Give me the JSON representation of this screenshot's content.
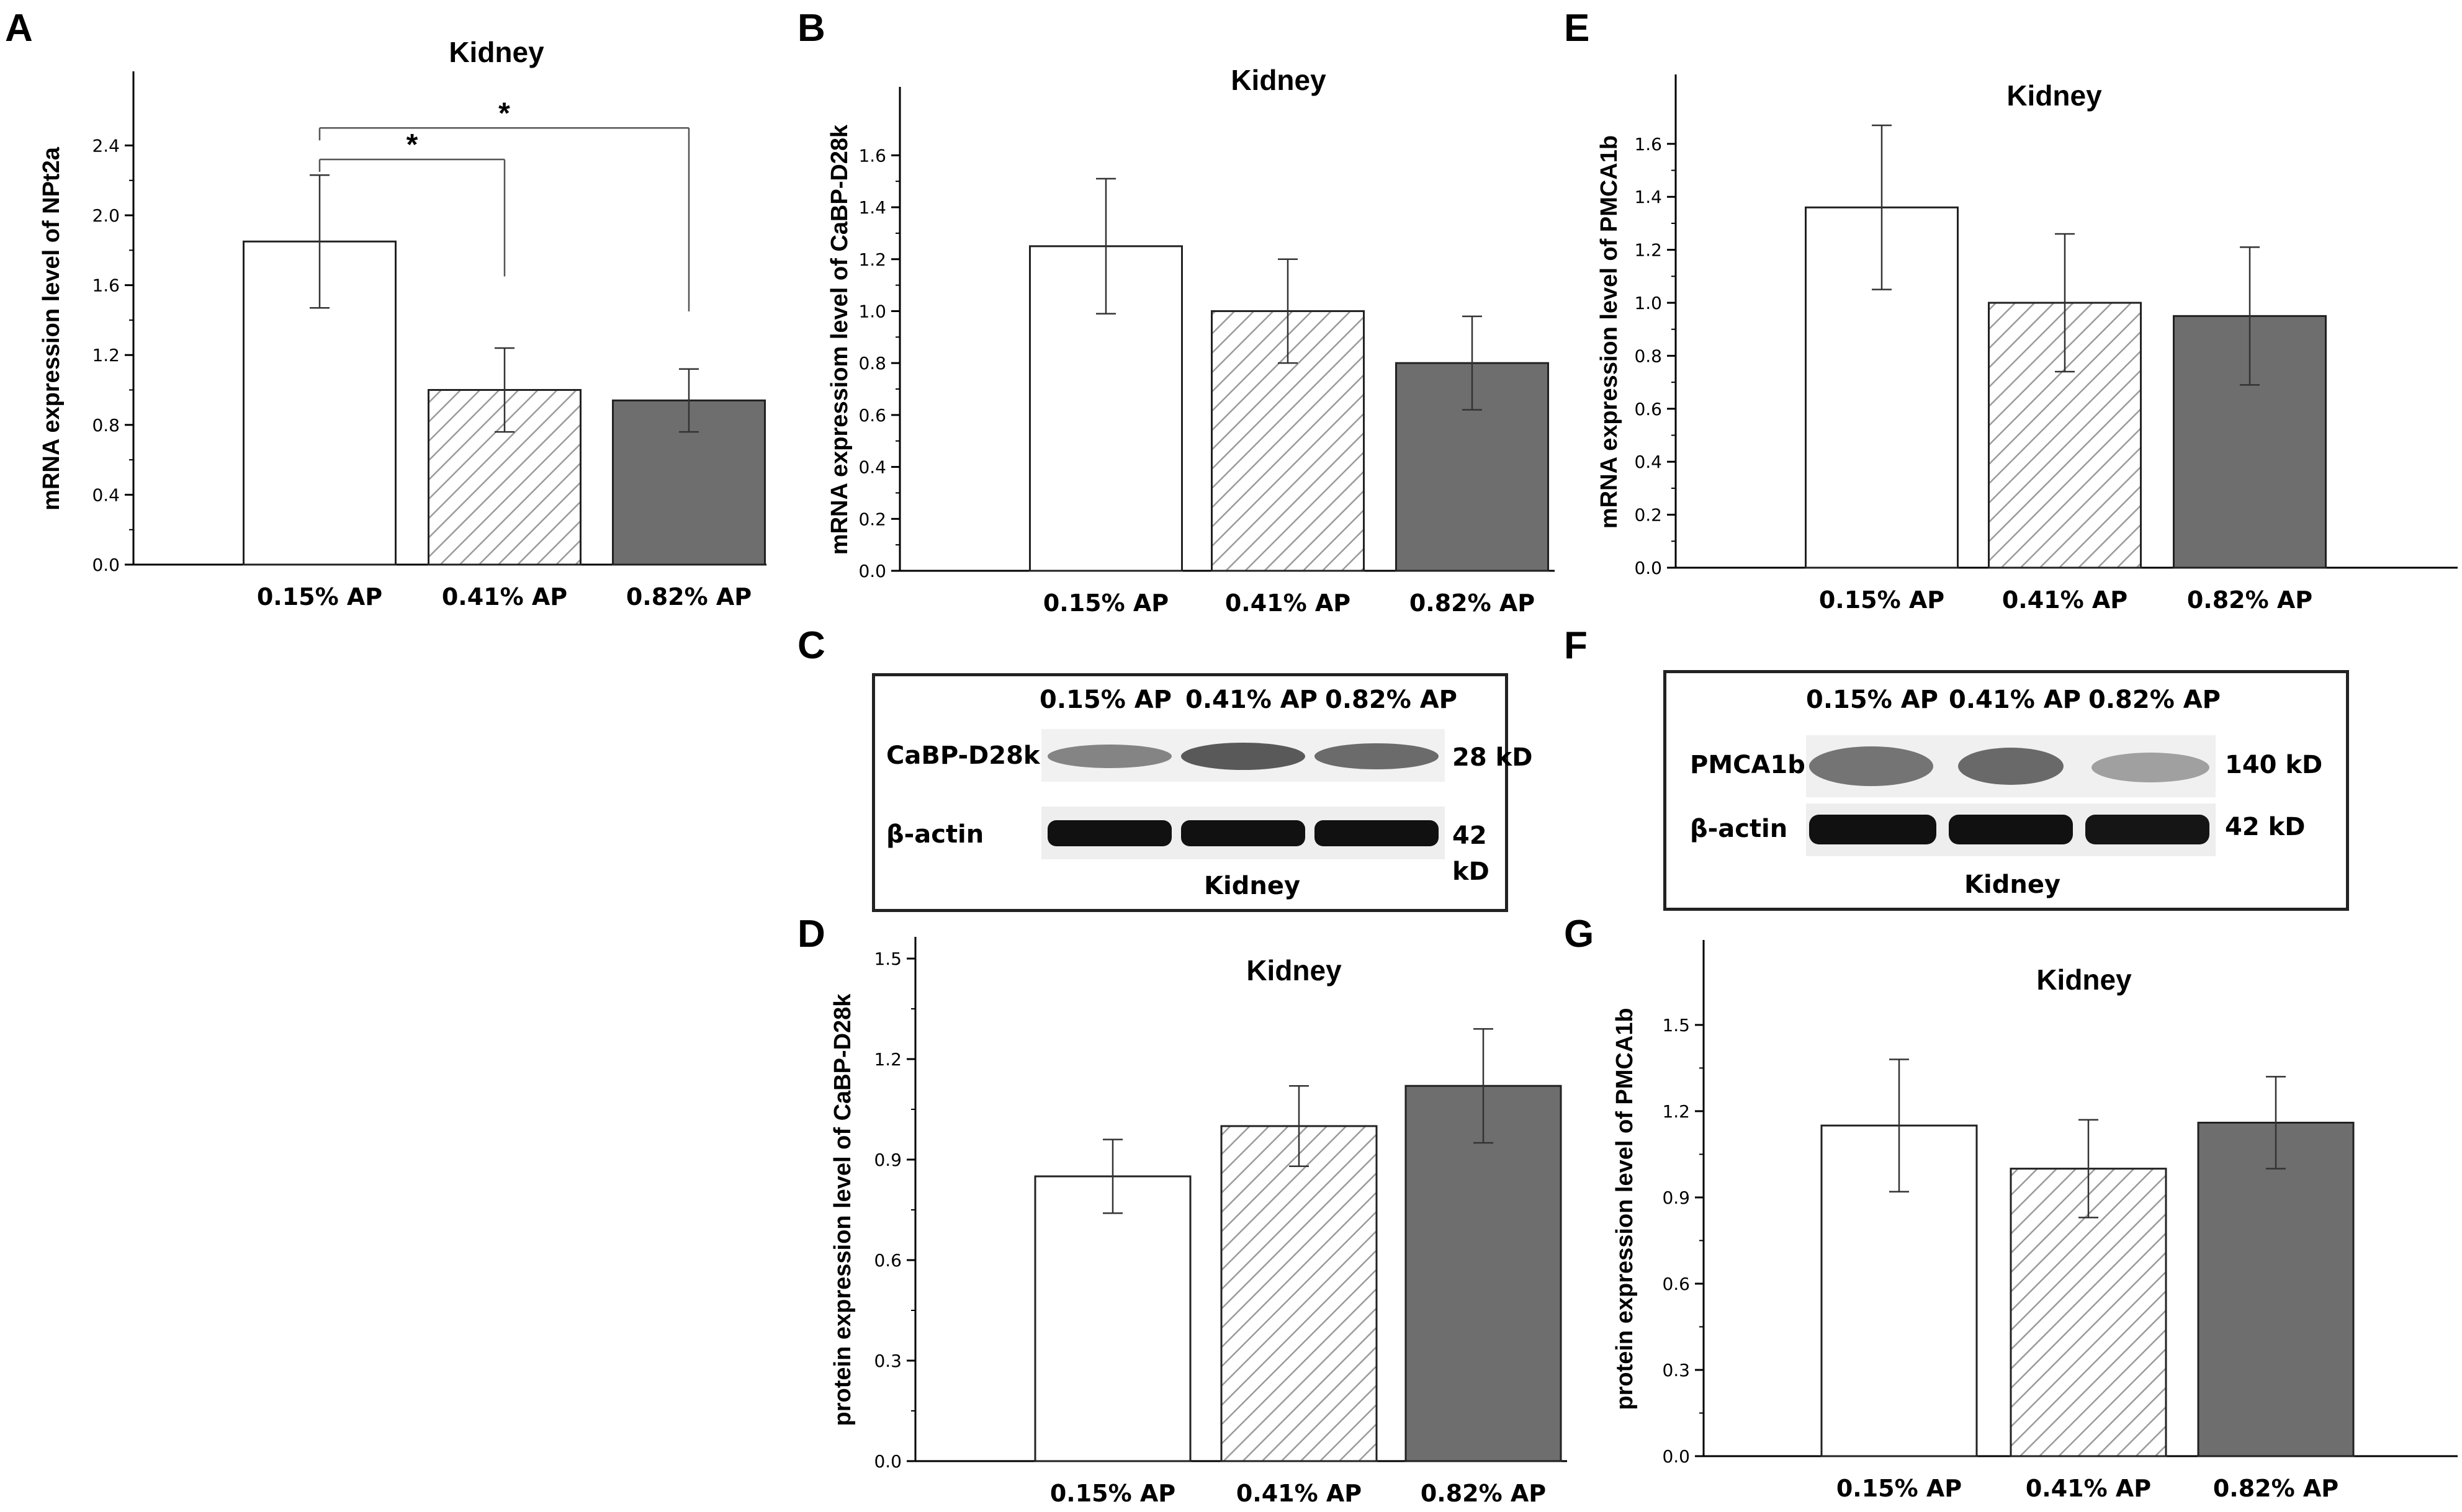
{
  "chart_data": [
    {
      "panel": "A",
      "type": "bar",
      "title": "Kidney",
      "ylabel": "mRNA expression level of NPt2a",
      "xlabel": "",
      "categories": [
        "0.15% AP",
        "0.41% AP",
        "0.82% AP"
      ],
      "values": [
        1.85,
        1.0,
        0.94
      ],
      "errors": [
        0.38,
        0.24,
        0.18
      ],
      "ylim": [
        0,
        2.7
      ],
      "yticks": [
        "0.0",
        "0.4",
        "0.8",
        "1.2",
        "1.6",
        "2.0",
        "2.4"
      ],
      "significance": [
        {
          "from": "0.15% AP",
          "to": "0.41% AP",
          "label": "*"
        },
        {
          "from": "0.15% AP",
          "to": "0.82% AP",
          "label": "*"
        }
      ]
    },
    {
      "panel": "B",
      "type": "bar",
      "title": "Kidney",
      "ylabel": "mRNA expressiom level of CaBP-D28k",
      "xlabel": "",
      "categories": [
        "0.15% AP",
        "0.41% AP",
        "0.82% AP"
      ],
      "values": [
        1.25,
        1.0,
        0.8
      ],
      "errors": [
        0.26,
        0.2,
        0.18
      ],
      "ylim": [
        0,
        1.78
      ],
      "yticks": [
        "0.0",
        "0.2",
        "0.4",
        "0.6",
        "0.8",
        "1.0",
        "1.2",
        "1.4",
        "1.6"
      ]
    },
    {
      "panel": "E",
      "type": "bar",
      "title": "Kidney",
      "ylabel": "mRNA expression level of PMCA1b",
      "xlabel": "",
      "categories": [
        "0.15% AP",
        "0.41% AP",
        "0.82% AP"
      ],
      "values": [
        1.36,
        1.0,
        0.95
      ],
      "errors": [
        0.31,
        0.26,
        0.26
      ],
      "ylim": [
        0,
        1.78
      ],
      "yticks": [
        "0.0",
        "0.2",
        "0.4",
        "0.6",
        "0.8",
        "1.0",
        "1.2",
        "1.4",
        "1.6"
      ]
    },
    {
      "panel": "D",
      "type": "bar",
      "title": "Kidney",
      "ylabel": "protein expression level of CaBP-D28k",
      "xlabel": "",
      "categories": [
        "0.15% AP",
        "0.41% AP",
        "0.82% AP"
      ],
      "values": [
        0.85,
        1.0,
        1.12
      ],
      "errors": [
        0.11,
        0.12,
        0.17
      ],
      "ylim": [
        0,
        1.5
      ],
      "yticks": [
        "0.0",
        "0.3",
        "0.6",
        "0.9",
        "1.2",
        "1.5"
      ]
    },
    {
      "panel": "G",
      "type": "bar",
      "title": "Kidney",
      "ylabel": "protein expression level of PMCA1b",
      "xlabel": "",
      "categories": [
        "0.15% AP",
        "0.41% AP",
        "0.82% AP"
      ],
      "values": [
        1.15,
        1.0,
        1.16
      ],
      "errors": [
        0.23,
        0.17,
        0.16
      ],
      "ylim": [
        0,
        1.72
      ],
      "yticks": [
        "0.0",
        "0.3",
        "0.6",
        "0.9",
        "1.2",
        "1.5"
      ]
    }
  ],
  "blots": [
    {
      "panel": "C",
      "lanes": [
        "0.15% AP",
        "0.41% AP",
        "0.82% AP"
      ],
      "target": "CaBP-D28k",
      "target_kd": "28 kD",
      "control": "β-actin",
      "control_kd": "42\nkD",
      "tissue": "Kidney"
    },
    {
      "panel": "F",
      "lanes": [
        "0.15% AP",
        "0.41% AP",
        "0.82% AP"
      ],
      "target": "PMCA1b",
      "target_kd": "140 kD",
      "control": "β-actin",
      "control_kd": "42 kD",
      "tissue": "Kidney"
    }
  ],
  "colors": {
    "bar1": "#ffffff",
    "bar2_hatch": "#9a9a9a",
    "bar3": "#6e6e6e",
    "axis": "#000000"
  }
}
